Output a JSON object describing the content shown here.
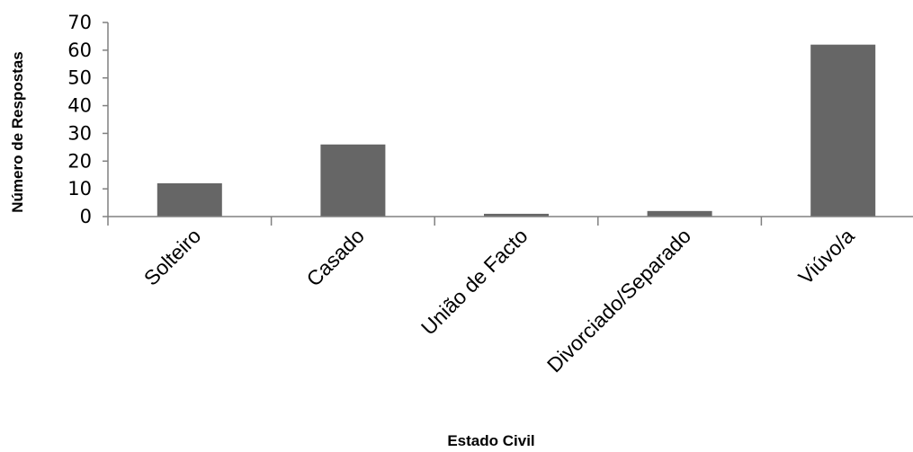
{
  "chart_data": {
    "type": "bar",
    "categories": [
      "Solteiro",
      "Casado",
      "União de Facto",
      "Divorciado/Separado",
      "Viúvo/a"
    ],
    "values": [
      12,
      26,
      1,
      2,
      62
    ],
    "title": "",
    "xlabel": "Estado Civil",
    "ylabel": "Número de Respostas",
    "ylim": [
      0,
      70
    ],
    "yticks": [
      0,
      10,
      20,
      30,
      40,
      50,
      60,
      70
    ],
    "grid": false,
    "legend": "none",
    "bar_color": "#666666"
  }
}
